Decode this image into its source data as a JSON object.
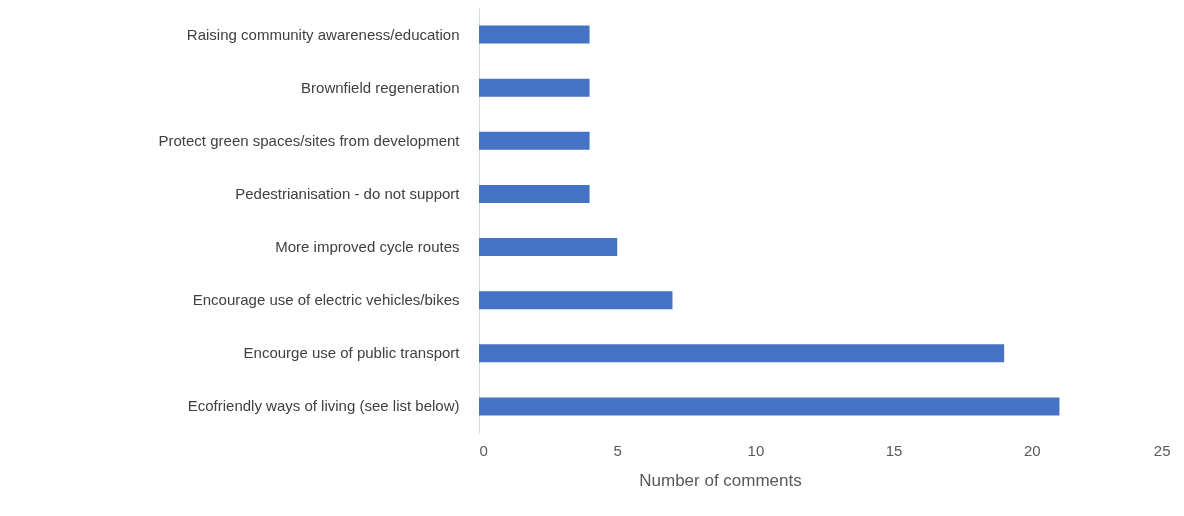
{
  "chart_data": {
    "type": "bar",
    "orientation": "horizontal",
    "categories": [
      "Raising community awareness/education",
      "Brownfield regeneration",
      "Protect green spaces/sites from development",
      "Pedestrianisation - do not support",
      "More improved cycle routes",
      "Encourage use of electric vehicles/bikes",
      "Encourge use of public transport",
      "Ecofriendly ways of living (see list below)"
    ],
    "values": [
      4,
      4,
      4,
      4,
      5,
      7,
      19,
      21
    ],
    "color": "#4472c4",
    "xlabel": "Number of comments",
    "xlim": [
      0,
      25
    ],
    "xticks": [
      0,
      5,
      10,
      15,
      20,
      25
    ],
    "grid": false
  }
}
